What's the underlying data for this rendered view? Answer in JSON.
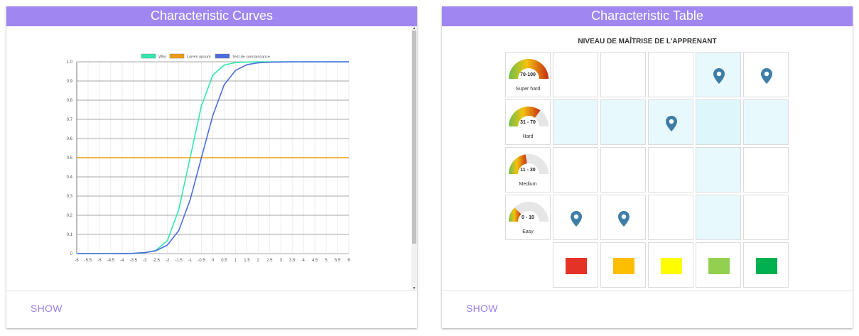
{
  "left_card": {
    "title": "Characteristic Curves",
    "show_label": "SHOW"
  },
  "right_card": {
    "title": "Characteristic Table",
    "show_label": "SHOW",
    "table_title": "NIVEAU DE MAÎTRISE DE L'APPRENANT",
    "levels": [
      {
        "range": "70-100",
        "label": "Super hard",
        "fill_fraction": 1.0
      },
      {
        "range": "31 - 70",
        "label": "Hard",
        "fill_fraction": 0.7
      },
      {
        "range": "11 - 30",
        "label": "Medium",
        "fill_fraction": 0.45
      },
      {
        "range": "0 - 10",
        "label": "Easy",
        "fill_fraction": 0.25
      }
    ],
    "pins": [
      [
        3,
        3
      ],
      [
        4,
        3
      ],
      [
        2,
        2
      ],
      [
        0,
        0
      ],
      [
        1,
        0
      ]
    ],
    "swatch_colors": [
      "#e53228",
      "#fdbd01",
      "#fffd00",
      "#93d052",
      "#01b04f"
    ]
  },
  "chart_data": {
    "type": "line",
    "legend": [
      "Who",
      "Lorem opsum",
      "Test de connaissance"
    ],
    "legend_placement": "top",
    "colors": [
      "#2fe8ad",
      "#f29c11",
      "#4c6ce0"
    ],
    "xlim": [
      -6,
      6
    ],
    "ylim": [
      0,
      1
    ],
    "x_ticks": [
      "-6",
      "-5.5",
      "-5",
      "-4.5",
      "-4",
      "-3.5",
      "-3",
      "-2.5",
      "-2",
      "-1.5",
      "-1",
      "-0.5",
      "0",
      "0.5",
      "1",
      "1.5",
      "2",
      "2.5",
      "3",
      "3.5",
      "4",
      "4.5",
      "5",
      "5.5",
      "6"
    ],
    "y_ticks": [
      "0",
      "0.1",
      "0.2",
      "0.3",
      "0.4",
      "0.5",
      "0.6",
      "0.7",
      "0.8",
      "0.9",
      "1.0"
    ],
    "x": [
      -6,
      -5.5,
      -5,
      -4.5,
      -4,
      -3.5,
      -3,
      -2.5,
      -2,
      -1.5,
      -1,
      -0.5,
      0,
      0.5,
      1,
      1.5,
      2,
      2.5,
      3,
      3.5,
      4,
      4.5,
      5,
      5.5,
      6
    ],
    "series": [
      {
        "name": "Who",
        "values": [
          0,
          0,
          0,
          0,
          0.0002,
          0.0009,
          0.004,
          0.017,
          0.069,
          0.23,
          0.5,
          0.77,
          0.93,
          0.983,
          0.996,
          0.999,
          1,
          1,
          1,
          1,
          1,
          1,
          1,
          1,
          1
        ]
      },
      {
        "name": "Lorem opsum",
        "values": [
          0.5,
          0.5,
          0.5,
          0.5,
          0.5,
          0.5,
          0.5,
          0.5,
          0.5,
          0.5,
          0.5,
          0.5,
          0.5,
          0.5,
          0.5,
          0.5,
          0.5,
          0.5,
          0.5,
          0.5,
          0.5,
          0.5,
          0.5,
          0.5,
          0.5
        ]
      },
      {
        "name": "Test de connaissance",
        "values": [
          0,
          0,
          0,
          0.0001,
          0.0004,
          0.0015,
          0.005,
          0.015,
          0.045,
          0.12,
          0.28,
          0.5,
          0.72,
          0.88,
          0.955,
          0.985,
          0.995,
          0.998,
          0.999,
          1,
          1,
          1,
          1,
          1,
          1
        ]
      }
    ]
  }
}
